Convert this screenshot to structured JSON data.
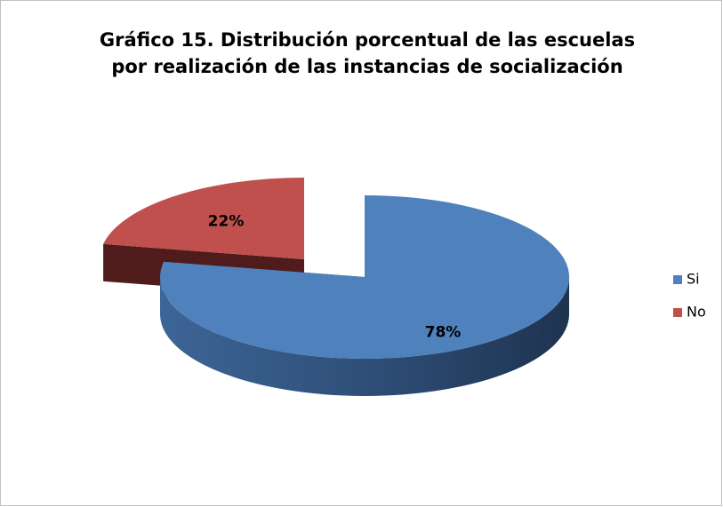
{
  "chart_data": {
    "type": "pie",
    "title": [
      "Gráfico 15. Distribución porcentual de las escuelas",
      "por realización de las instancias de socialización"
    ],
    "categories": [
      "Si",
      "No"
    ],
    "values": [
      78,
      22
    ],
    "value_labels": [
      "78%",
      "22%"
    ],
    "colors": [
      "#4f81bd",
      "#c0504d"
    ],
    "legend": "right"
  }
}
